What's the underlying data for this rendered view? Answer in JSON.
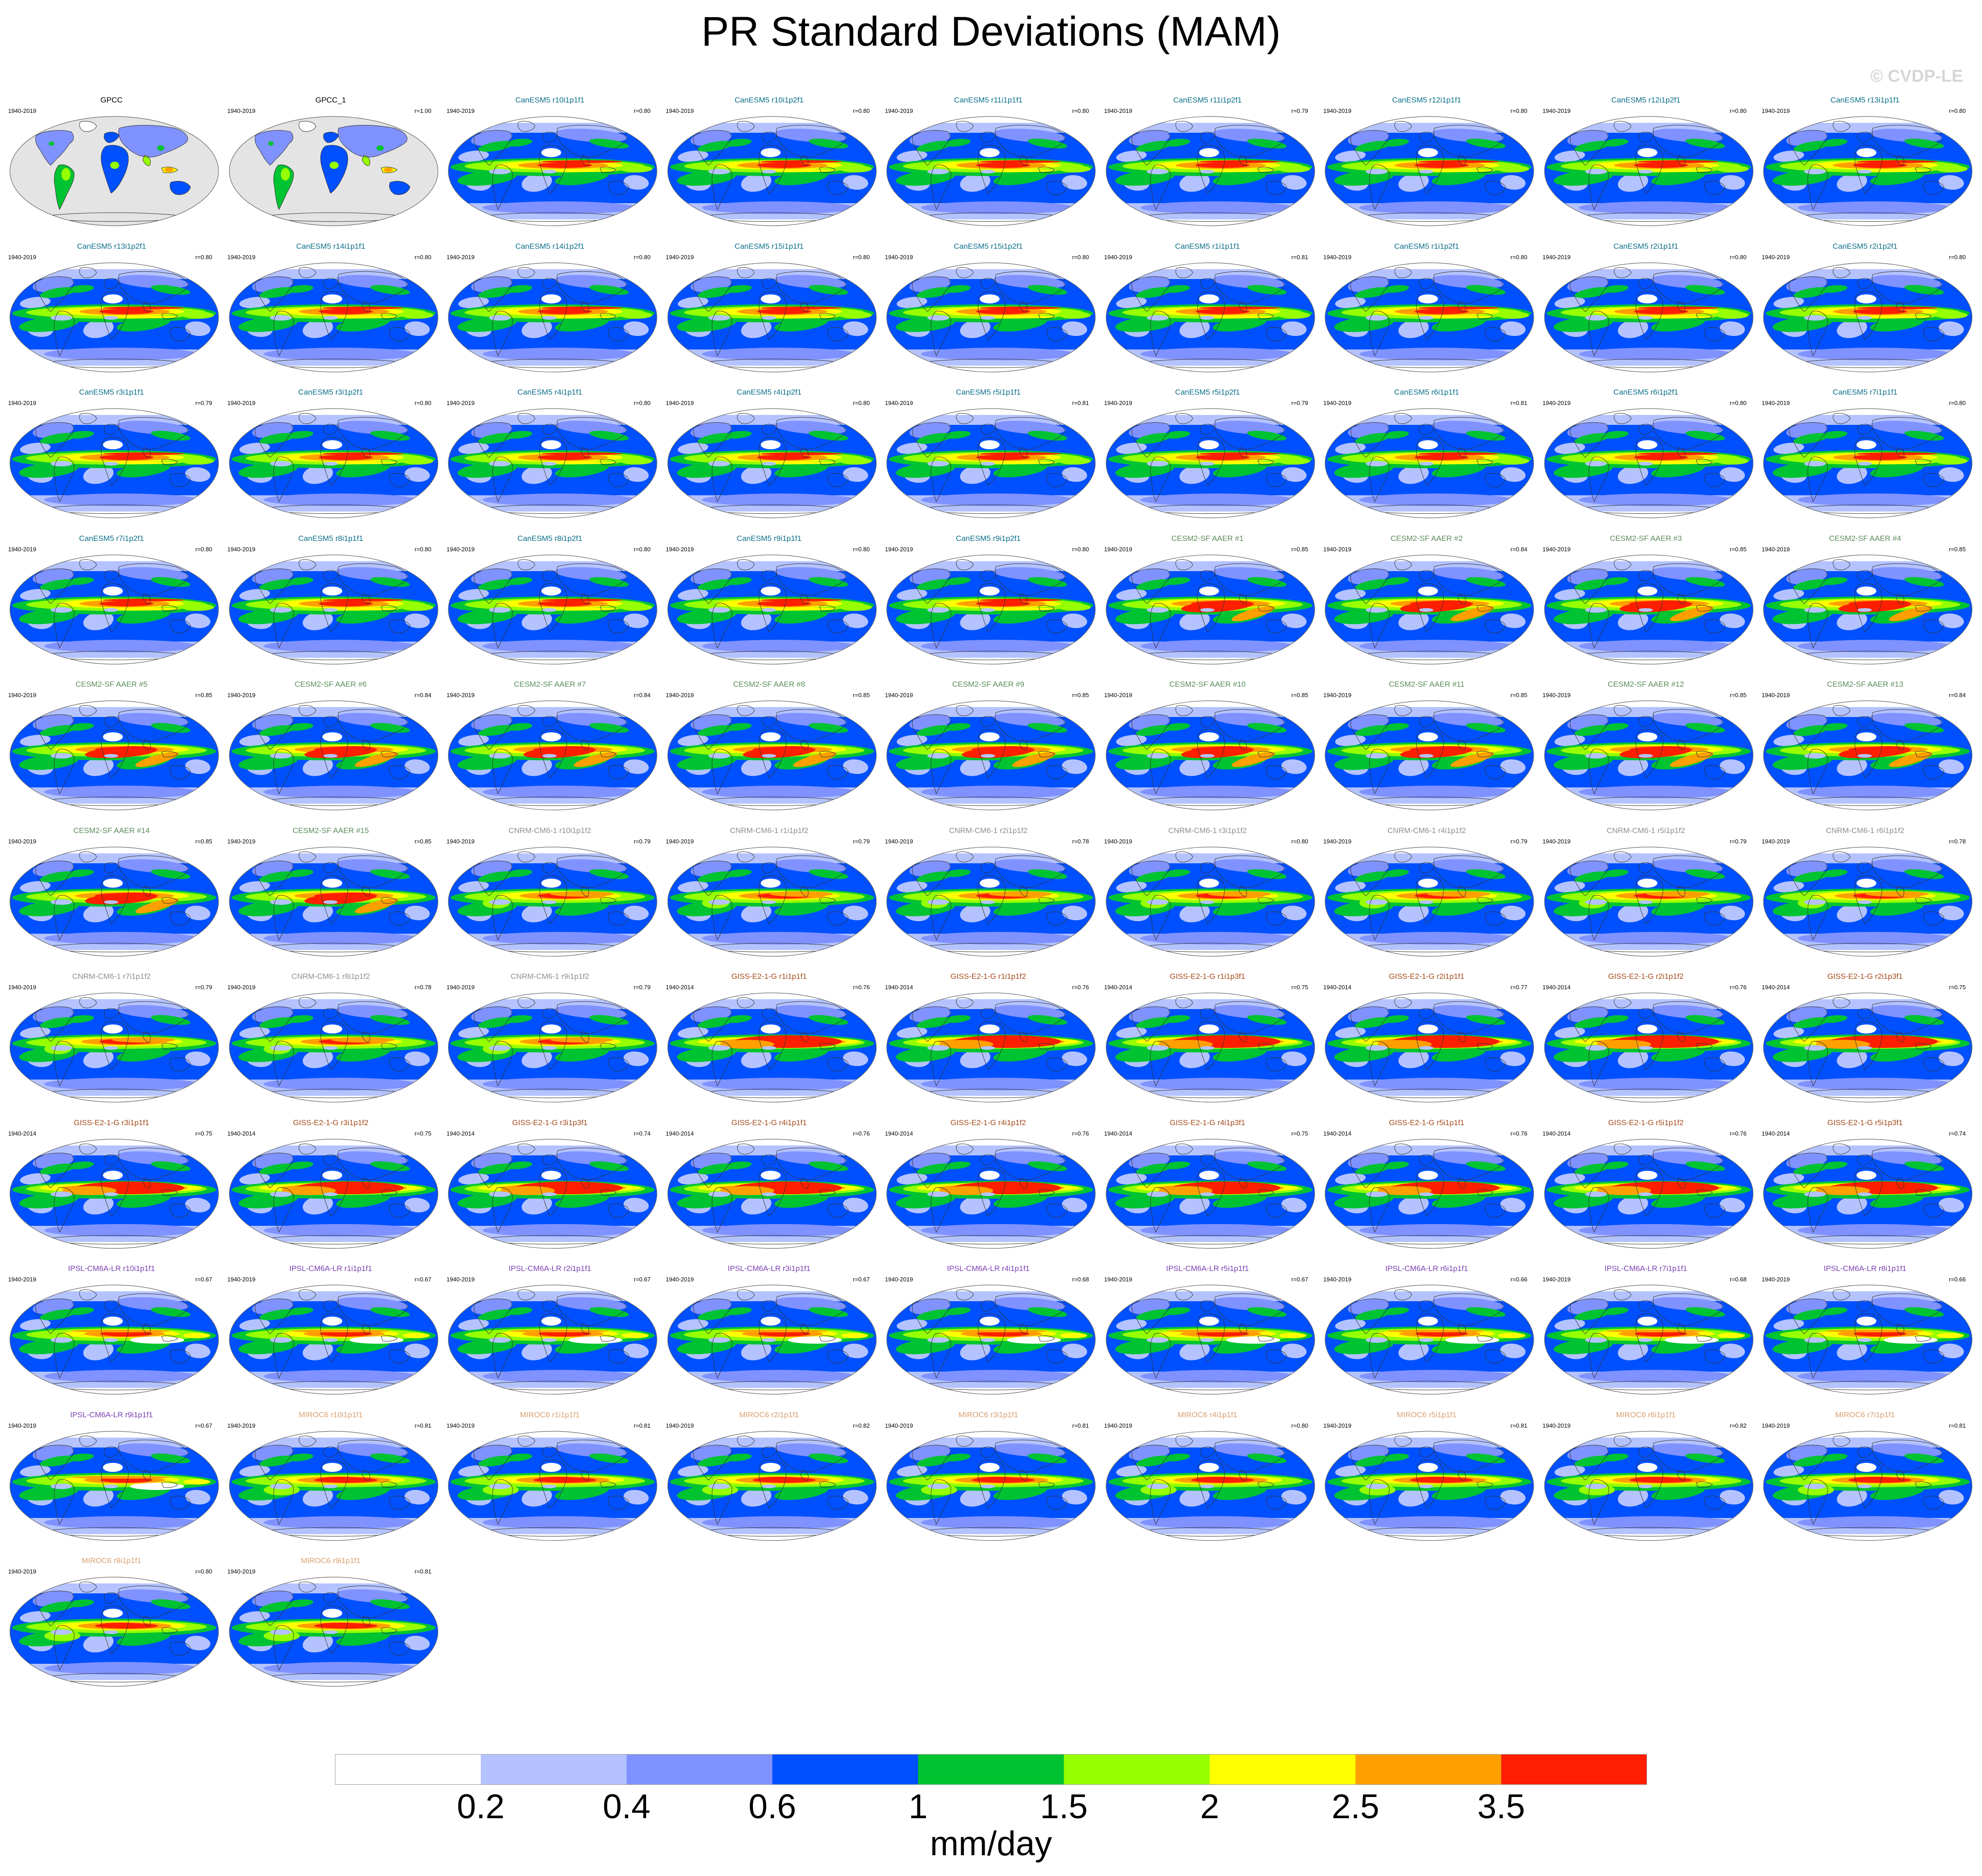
{
  "figure": {
    "title": "PR Standard Deviations (MAM)",
    "watermark": "© CVDP-LE",
    "units": "mm/day"
  },
  "colorbar": {
    "levels": [
      "0.2",
      "0.4",
      "0.6",
      "1",
      "1.5",
      "2",
      "2.5",
      "3.5"
    ],
    "colors": [
      "#ffffff",
      "#b4c3ff",
      "#7f92ff",
      "#0050ff",
      "#00c332",
      "#96ff00",
      "#ffff00",
      "#ffa000",
      "#ff1e00"
    ]
  },
  "groups": {
    "GPCC": {
      "color": "#000000",
      "style": 0
    },
    "CanESM5": {
      "color": "#0b6f8a",
      "style": 1
    },
    "CESM2-SF AAER": {
      "color": "#5b8c5a",
      "style": 2
    },
    "CNRM-CM6-1": {
      "color": "#8e8e8e",
      "style": 3
    },
    "GISS-E2-1-G": {
      "color": "#a34a1b",
      "style": 4
    },
    "IPSL-CM6A-LR": {
      "color": "#7a3fb2",
      "style": 5
    },
    "MIROC6": {
      "color": "#d9a070",
      "style": 6
    }
  },
  "panels": [
    {
      "title": "GPCC",
      "group": "GPCC",
      "years": "1940-2019",
      "r": ""
    },
    {
      "title": "GPCC_1",
      "group": "GPCC",
      "years": "1940-2019",
      "r": "r=1.00"
    },
    {
      "title": "CanESM5 r10i1p1f1",
      "group": "CanESM5",
      "years": "1940-2019",
      "r": "r=0.80"
    },
    {
      "title": "CanESM5 r10i1p2f1",
      "group": "CanESM5",
      "years": "1940-2019",
      "r": "r=0.80"
    },
    {
      "title": "CanESM5 r11i1p1f1",
      "group": "CanESM5",
      "years": "1940-2019",
      "r": "r=0.80"
    },
    {
      "title": "CanESM5 r11i1p2f1",
      "group": "CanESM5",
      "years": "1940-2019",
      "r": "r=0.79"
    },
    {
      "title": "CanESM5 r12i1p1f1",
      "group": "CanESM5",
      "years": "1940-2019",
      "r": "r=0.80"
    },
    {
      "title": "CanESM5 r12i1p2f1",
      "group": "CanESM5",
      "years": "1940-2019",
      "r": "r=0.80"
    },
    {
      "title": "CanESM5 r13i1p1f1",
      "group": "CanESM5",
      "years": "1940-2019",
      "r": "r=0.80"
    },
    {
      "title": "CanESM5 r13i1p2f1",
      "group": "CanESM5",
      "years": "1940-2019",
      "r": "r=0.80"
    },
    {
      "title": "CanESM5 r14i1p1f1",
      "group": "CanESM5",
      "years": "1940-2019",
      "r": "r=0.80"
    },
    {
      "title": "CanESM5 r14i1p2f1",
      "group": "CanESM5",
      "years": "1940-2019",
      "r": "r=0.80"
    },
    {
      "title": "CanESM5 r15i1p1f1",
      "group": "CanESM5",
      "years": "1940-2019",
      "r": "r=0.80"
    },
    {
      "title": "CanESM5 r15i1p2f1",
      "group": "CanESM5",
      "years": "1940-2019",
      "r": "r=0.80"
    },
    {
      "title": "CanESM5 r1i1p1f1",
      "group": "CanESM5",
      "years": "1940-2019",
      "r": "r=0.81"
    },
    {
      "title": "CanESM5 r1i1p2f1",
      "group": "CanESM5",
      "years": "1940-2019",
      "r": "r=0.80"
    },
    {
      "title": "CanESM5 r2i1p1f1",
      "group": "CanESM5",
      "years": "1940-2019",
      "r": "r=0.80"
    },
    {
      "title": "CanESM5 r2i1p2f1",
      "group": "CanESM5",
      "years": "1940-2019",
      "r": "r=0.80"
    },
    {
      "title": "CanESM5 r3i1p1f1",
      "group": "CanESM5",
      "years": "1940-2019",
      "r": "r=0.79"
    },
    {
      "title": "CanESM5 r3i1p2f1",
      "group": "CanESM5",
      "years": "1940-2019",
      "r": "r=0.80"
    },
    {
      "title": "CanESM5 r4i1p1f1",
      "group": "CanESM5",
      "years": "1940-2019",
      "r": "r=0.80"
    },
    {
      "title": "CanESM5 r4i1p2f1",
      "group": "CanESM5",
      "years": "1940-2019",
      "r": "r=0.80"
    },
    {
      "title": "CanESM5 r5i1p1f1",
      "group": "CanESM5",
      "years": "1940-2019",
      "r": "r=0.81"
    },
    {
      "title": "CanESM5 r5i1p2f1",
      "group": "CanESM5",
      "years": "1940-2019",
      "r": "r=0.79"
    },
    {
      "title": "CanESM5 r6i1p1f1",
      "group": "CanESM5",
      "years": "1940-2019",
      "r": "r=0.81"
    },
    {
      "title": "CanESM5 r6i1p2f1",
      "group": "CanESM5",
      "years": "1940-2019",
      "r": "r=0.80"
    },
    {
      "title": "CanESM5 r7i1p1f1",
      "group": "CanESM5",
      "years": "1940-2019",
      "r": "r=0.80"
    },
    {
      "title": "CanESM5 r7i1p2f1",
      "group": "CanESM5",
      "years": "1940-2019",
      "r": "r=0.80"
    },
    {
      "title": "CanESM5 r8i1p1f1",
      "group": "CanESM5",
      "years": "1940-2019",
      "r": "r=0.80"
    },
    {
      "title": "CanESM5 r8i1p2f1",
      "group": "CanESM5",
      "years": "1940-2019",
      "r": "r=0.80"
    },
    {
      "title": "CanESM5 r9i1p1f1",
      "group": "CanESM5",
      "years": "1940-2019",
      "r": "r=0.80"
    },
    {
      "title": "CanESM5 r9i1p2f1",
      "group": "CanESM5",
      "years": "1940-2019",
      "r": "r=0.80"
    },
    {
      "title": "CESM2-SF AAER #1",
      "group": "CESM2-SF AAER",
      "years": "1940-2019",
      "r": "r=0.85"
    },
    {
      "title": "CESM2-SF AAER #2",
      "group": "CESM2-SF AAER",
      "years": "1940-2019",
      "r": "r=0.84"
    },
    {
      "title": "CESM2-SF AAER #3",
      "group": "CESM2-SF AAER",
      "years": "1940-2019",
      "r": "r=0.85"
    },
    {
      "title": "CESM2-SF AAER #4",
      "group": "CESM2-SF AAER",
      "years": "1940-2019",
      "r": "r=0.85"
    },
    {
      "title": "CESM2-SF AAER #5",
      "group": "CESM2-SF AAER",
      "years": "1940-2019",
      "r": "r=0.85"
    },
    {
      "title": "CESM2-SF AAER #6",
      "group": "CESM2-SF AAER",
      "years": "1940-2019",
      "r": "r=0.84"
    },
    {
      "title": "CESM2-SF AAER #7",
      "group": "CESM2-SF AAER",
      "years": "1940-2019",
      "r": "r=0.84"
    },
    {
      "title": "CESM2-SF AAER #8",
      "group": "CESM2-SF AAER",
      "years": "1940-2019",
      "r": "r=0.85"
    },
    {
      "title": "CESM2-SF AAER #9",
      "group": "CESM2-SF AAER",
      "years": "1940-2019",
      "r": "r=0.85"
    },
    {
      "title": "CESM2-SF AAER #10",
      "group": "CESM2-SF AAER",
      "years": "1940-2019",
      "r": "r=0.85"
    },
    {
      "title": "CESM2-SF AAER #11",
      "group": "CESM2-SF AAER",
      "years": "1940-2019",
      "r": "r=0.85"
    },
    {
      "title": "CESM2-SF AAER #12",
      "group": "CESM2-SF AAER",
      "years": "1940-2019",
      "r": "r=0.85"
    },
    {
      "title": "CESM2-SF AAER #13",
      "group": "CESM2-SF AAER",
      "years": "1940-2019",
      "r": "r=0.84"
    },
    {
      "title": "CESM2-SF AAER #14",
      "group": "CESM2-SF AAER",
      "years": "1940-2019",
      "r": "r=0.85"
    },
    {
      "title": "CESM2-SF AAER #15",
      "group": "CESM2-SF AAER",
      "years": "1940-2019",
      "r": "r=0.85"
    },
    {
      "title": "CNRM-CM6-1 r10i1p1f2",
      "group": "CNRM-CM6-1",
      "years": "1940-2019",
      "r": "r=0.79"
    },
    {
      "title": "CNRM-CM6-1 r1i1p1f2",
      "group": "CNRM-CM6-1",
      "years": "1940-2019",
      "r": "r=0.79"
    },
    {
      "title": "CNRM-CM6-1 r2i1p1f2",
      "group": "CNRM-CM6-1",
      "years": "1940-2019",
      "r": "r=0.78"
    },
    {
      "title": "CNRM-CM6-1 r3i1p1f2",
      "group": "CNRM-CM6-1",
      "years": "1940-2019",
      "r": "r=0.80"
    },
    {
      "title": "CNRM-CM6-1 r4i1p1f2",
      "group": "CNRM-CM6-1",
      "years": "1940-2019",
      "r": "r=0.79"
    },
    {
      "title": "CNRM-CM6-1 r5i1p1f2",
      "group": "CNRM-CM6-1",
      "years": "1940-2019",
      "r": "r=0.79"
    },
    {
      "title": "CNRM-CM6-1 r6i1p1f2",
      "group": "CNRM-CM6-1",
      "years": "1940-2019",
      "r": "r=0.78"
    },
    {
      "title": "CNRM-CM6-1 r7i1p1f2",
      "group": "CNRM-CM6-1",
      "years": "1940-2019",
      "r": "r=0.79"
    },
    {
      "title": "CNRM-CM6-1 r8i1p1f2",
      "group": "CNRM-CM6-1",
      "years": "1940-2019",
      "r": "r=0.78"
    },
    {
      "title": "CNRM-CM6-1 r9i1p1f2",
      "group": "CNRM-CM6-1",
      "years": "1940-2019",
      "r": "r=0.79"
    },
    {
      "title": "GISS-E2-1-G r1i1p1f1",
      "group": "GISS-E2-1-G",
      "years": "1940-2014",
      "r": "r=0.76"
    },
    {
      "title": "GISS-E2-1-G r1i1p1f2",
      "group": "GISS-E2-1-G",
      "years": "1940-2014",
      "r": "r=0.76"
    },
    {
      "title": "GISS-E2-1-G r1i1p3f1",
      "group": "GISS-E2-1-G",
      "years": "1940-2014",
      "r": "r=0.75"
    },
    {
      "title": "GISS-E2-1-G r2i1p1f1",
      "group": "GISS-E2-1-G",
      "years": "1940-2014",
      "r": "r=0.77"
    },
    {
      "title": "GISS-E2-1-G r2i1p1f2",
      "group": "GISS-E2-1-G",
      "years": "1940-2014",
      "r": "r=0.76"
    },
    {
      "title": "GISS-E2-1-G r2i1p3f1",
      "group": "GISS-E2-1-G",
      "years": "1940-2014",
      "r": "r=0.75"
    },
    {
      "title": "GISS-E2-1-G r3i1p1f1",
      "group": "GISS-E2-1-G",
      "years": "1940-2014",
      "r": "r=0.75"
    },
    {
      "title": "GISS-E2-1-G r3i1p1f2",
      "group": "GISS-E2-1-G",
      "years": "1940-2014",
      "r": "r=0.75"
    },
    {
      "title": "GISS-E2-1-G r3i1p3f1",
      "group": "GISS-E2-1-G",
      "years": "1940-2014",
      "r": "r=0.74"
    },
    {
      "title": "GISS-E2-1-G r4i1p1f1",
      "group": "GISS-E2-1-G",
      "years": "1940-2014",
      "r": "r=0.76"
    },
    {
      "title": "GISS-E2-1-G r4i1p1f2",
      "group": "GISS-E2-1-G",
      "years": "1940-2014",
      "r": "r=0.76"
    },
    {
      "title": "GISS-E2-1-G r4i1p3f1",
      "group": "GISS-E2-1-G",
      "years": "1940-2014",
      "r": "r=0.75"
    },
    {
      "title": "GISS-E2-1-G r5i1p1f1",
      "group": "GISS-E2-1-G",
      "years": "1940-2014",
      "r": "r=0.76"
    },
    {
      "title": "GISS-E2-1-G r5i1p1f2",
      "group": "GISS-E2-1-G",
      "years": "1940-2014",
      "r": "r=0.76"
    },
    {
      "title": "GISS-E2-1-G r5i1p3f1",
      "group": "GISS-E2-1-G",
      "years": "1940-2014",
      "r": "r=0.74"
    },
    {
      "title": "IPSL-CM6A-LR r10i1p1f1",
      "group": "IPSL-CM6A-LR",
      "years": "1940-2019",
      "r": "r=0.67"
    },
    {
      "title": "IPSL-CM6A-LR r1i1p1f1",
      "group": "IPSL-CM6A-LR",
      "years": "1940-2019",
      "r": "r=0.67"
    },
    {
      "title": "IPSL-CM6A-LR r2i1p1f1",
      "group": "IPSL-CM6A-LR",
      "years": "1940-2019",
      "r": "r=0.67"
    },
    {
      "title": "IPSL-CM6A-LR r3i1p1f1",
      "group": "IPSL-CM6A-LR",
      "years": "1940-2019",
      "r": "r=0.67"
    },
    {
      "title": "IPSL-CM6A-LR r4i1p1f1",
      "group": "IPSL-CM6A-LR",
      "years": "1940-2019",
      "r": "r=0.68"
    },
    {
      "title": "IPSL-CM6A-LR r5i1p1f1",
      "group": "IPSL-CM6A-LR",
      "years": "1940-2019",
      "r": "r=0.67"
    },
    {
      "title": "IPSL-CM6A-LR r6i1p1f1",
      "group": "IPSL-CM6A-LR",
      "years": "1940-2019",
      "r": "r=0.66"
    },
    {
      "title": "IPSL-CM6A-LR r7i1p1f1",
      "group": "IPSL-CM6A-LR",
      "years": "1940-2019",
      "r": "r=0.68"
    },
    {
      "title": "IPSL-CM6A-LR r8i1p1f1",
      "group": "IPSL-CM6A-LR",
      "years": "1940-2019",
      "r": "r=0.66"
    },
    {
      "title": "IPSL-CM6A-LR r9i1p1f1",
      "group": "IPSL-CM6A-LR",
      "years": "1940-2019",
      "r": "r=0.67"
    },
    {
      "title": "MIROC6 r10i1p1f1",
      "group": "MIROC6",
      "years": "1940-2019",
      "r": "r=0.81"
    },
    {
      "title": "MIROC6 r1i1p1f1",
      "group": "MIROC6",
      "years": "1940-2019",
      "r": "r=0.81"
    },
    {
      "title": "MIROC6 r2i1p1f1",
      "group": "MIROC6",
      "years": "1940-2019",
      "r": "r=0.82"
    },
    {
      "title": "MIROC6 r3i1p1f1",
      "group": "MIROC6",
      "years": "1940-2019",
      "r": "r=0.81"
    },
    {
      "title": "MIROC6 r4i1p1f1",
      "group": "MIROC6",
      "years": "1940-2019",
      "r": "r=0.80"
    },
    {
      "title": "MIROC6 r5i1p1f1",
      "group": "MIROC6",
      "years": "1940-2019",
      "r": "r=0.81"
    },
    {
      "title": "MIROC6 r6i1p1f1",
      "group": "MIROC6",
      "years": "1940-2019",
      "r": "r=0.82"
    },
    {
      "title": "MIROC6 r7i1p1f1",
      "group": "MIROC6",
      "years": "1940-2019",
      "r": "r=0.81"
    },
    {
      "title": "MIROC6 r8i1p1f1",
      "group": "MIROC6",
      "years": "1940-2019",
      "r": "r=0.80"
    },
    {
      "title": "MIROC6 r9i1p1f1",
      "group": "MIROC6",
      "years": "1940-2019",
      "r": "r=0.81"
    }
  ]
}
